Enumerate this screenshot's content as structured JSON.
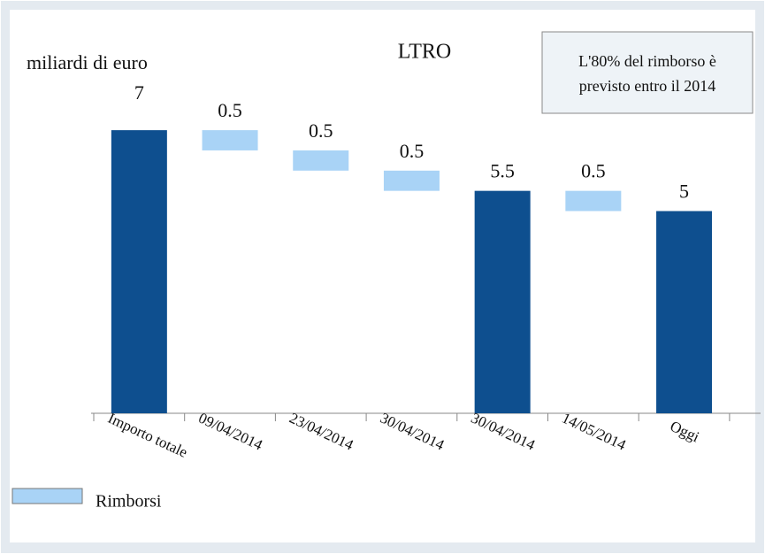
{
  "chart_data": {
    "type": "waterfall",
    "title": "LTRO",
    "ylabel": "miliardi di euro",
    "annotation": [
      "L'80% del rimborso è",
      "previsto entro il 2014"
    ],
    "categories": [
      "Importo totale",
      "09/04/2014",
      "23/04/2014",
      "30/04/2014",
      "30/04/2014",
      "14/05/2014",
      "Oggi"
    ],
    "values": [
      7,
      0.5,
      0.5,
      0.5,
      5.5,
      0.5,
      5
    ],
    "kinds": [
      "total",
      "decrease",
      "decrease",
      "decrease",
      "total",
      "decrease",
      "total"
    ],
    "total_color": "#0e4f8f",
    "series": [
      {
        "name": "Rimborsi",
        "color": "#a9d3f6"
      }
    ]
  }
}
